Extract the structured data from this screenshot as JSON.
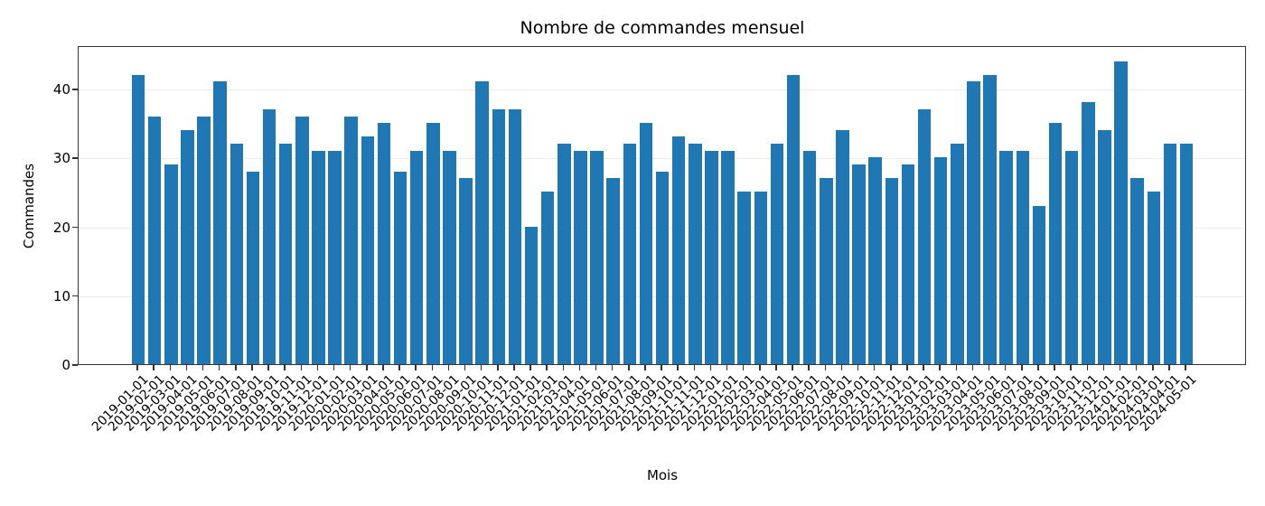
{
  "chart_data": {
    "type": "bar",
    "title": "Nombre de commandes mensuel",
    "xlabel": "Mois",
    "ylabel": "Commandes",
    "ylim": [
      0,
      46.3
    ],
    "yticks": [
      0,
      10,
      20,
      30,
      40
    ],
    "grid": "y",
    "bar_color": "#1f77b4",
    "categories": [
      "2019-01-01",
      "2019-02-01",
      "2019-03-01",
      "2019-04-01",
      "2019-05-01",
      "2019-06-01",
      "2019-07-01",
      "2019-08-01",
      "2019-09-01",
      "2019-10-01",
      "2019-11-01",
      "2019-12-01",
      "2020-01-01",
      "2020-02-01",
      "2020-03-01",
      "2020-04-01",
      "2020-05-01",
      "2020-06-01",
      "2020-07-01",
      "2020-08-01",
      "2020-09-01",
      "2020-10-01",
      "2020-11-01",
      "2020-12-01",
      "2021-01-01",
      "2021-02-01",
      "2021-03-01",
      "2021-04-01",
      "2021-05-01",
      "2021-06-01",
      "2021-07-01",
      "2021-08-01",
      "2021-09-01",
      "2021-10-01",
      "2021-11-01",
      "2021-12-01",
      "2022-01-01",
      "2022-02-01",
      "2022-03-01",
      "2022-04-01",
      "2022-05-01",
      "2022-06-01",
      "2022-07-01",
      "2022-08-01",
      "2022-09-01",
      "2022-10-01",
      "2022-11-01",
      "2022-12-01",
      "2023-01-01",
      "2023-02-01",
      "2023-03-01",
      "2023-04-01",
      "2023-05-01",
      "2023-06-01",
      "2023-07-01",
      "2023-08-01",
      "2023-09-01",
      "2023-10-01",
      "2023-11-01",
      "2023-12-01",
      "2024-01-01",
      "2024-02-01",
      "2024-03-01",
      "2024-04-01",
      "2024-05-01"
    ],
    "values": [
      42,
      36,
      29,
      34,
      36,
      41,
      32,
      28,
      37,
      32,
      36,
      31,
      31,
      36,
      33,
      35,
      28,
      31,
      35,
      31,
      27,
      41,
      37,
      37,
      20,
      25,
      32,
      31,
      31,
      27,
      32,
      35,
      28,
      33,
      32,
      31,
      31,
      25,
      25,
      32,
      42,
      31,
      27,
      34,
      29,
      30,
      27,
      29,
      37,
      30,
      32,
      41,
      42,
      31,
      31,
      23,
      35,
      31,
      38,
      34,
      44,
      27,
      25,
      32,
      32
    ]
  }
}
